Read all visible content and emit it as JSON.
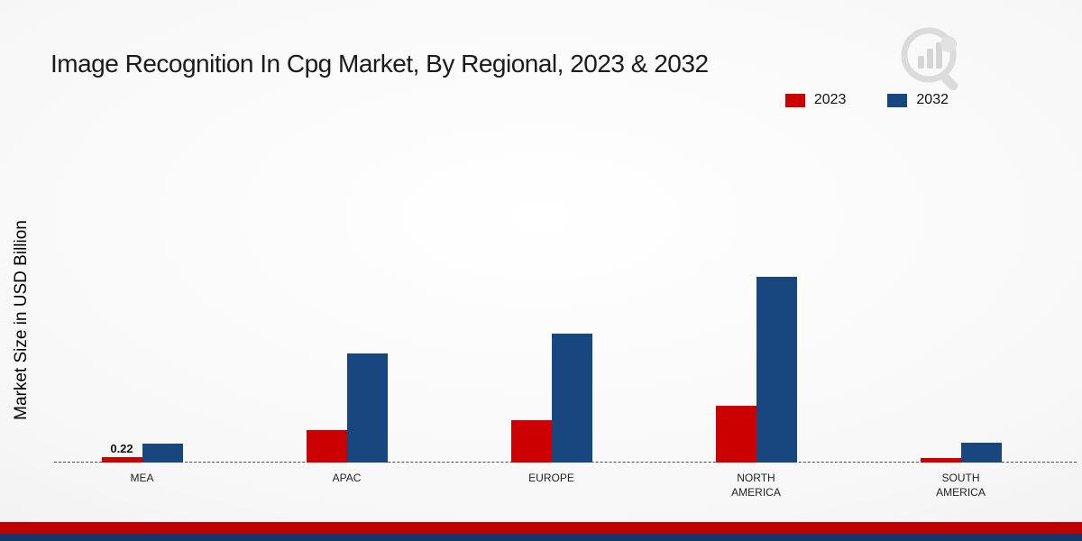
{
  "title": "Image Recognition In Cpg Market, By Regional, 2023 & 2032",
  "y_axis_label": "Market Size in USD Billion",
  "chart_data": {
    "type": "bar",
    "title": "Image Recognition In Cpg Market, By Regional, 2023 & 2032",
    "xlabel": "",
    "ylabel": "Market Size in USD Billion",
    "categories": [
      "MEA",
      "APAC",
      "EUROPE",
      "NORTH AMERICA",
      "SOUTH AMERICA"
    ],
    "series": [
      {
        "name": "2023",
        "color": "#cc0000",
        "values": [
          0.22,
          1.3,
          1.7,
          2.3,
          0.2
        ]
      },
      {
        "name": "2032",
        "color": "#17477e",
        "values": [
          0.75,
          4.4,
          5.2,
          7.5,
          0.8
        ]
      }
    ],
    "ylim": [
      0,
      8
    ],
    "grid": false,
    "legend_position": "top-right",
    "data_labels": [
      {
        "series_index": 0,
        "category_index": 0,
        "text": "0.22"
      }
    ]
  },
  "footer": {
    "red_strip_color": "#c00000",
    "blue_strip_color": "#12386b"
  },
  "logo": {
    "name": "market-research-watermark-logo",
    "color": "#d6d6d6"
  }
}
